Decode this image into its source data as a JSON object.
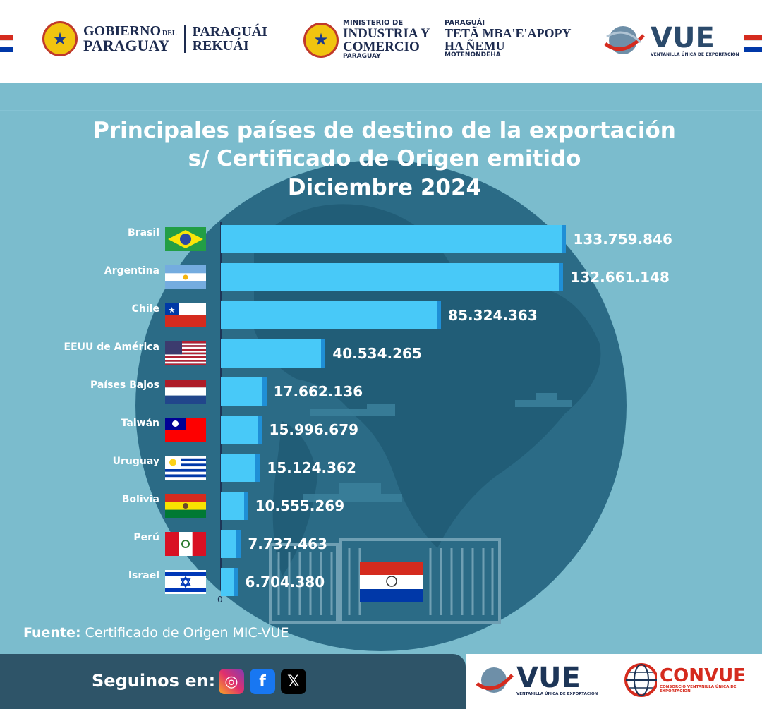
{
  "header": {
    "gobierno": {
      "line1": "GOBIERNO",
      "del": "DEL",
      "line2": "PARAGUAY"
    },
    "rekuai": {
      "line1": "PARAGUÁI",
      "line2": "REKUÁI"
    },
    "ministerio": {
      "small_top": "MINISTERIO DE",
      "line1": "INDUSTRIA Y",
      "line2": "COMERCIO",
      "small_bottom": "PARAGUAY"
    },
    "guarani": {
      "small_top": "PARAGUÁI",
      "line1": "TETÃ MBA'E'APOPY",
      "line2": "HA ÑEMU",
      "small_bottom": "MOTENONDEHA"
    },
    "vue": {
      "name": "VUE",
      "subtitle": "VENTANILLA ÚNICA DE EXPORTACIÓN"
    }
  },
  "chart_data": {
    "type": "bar",
    "orientation": "horizontal",
    "title": "Principales países de destino de la exportación s/ Certificado de Origen emitido Diciembre 2024",
    "title_lines": [
      "Principales países de destino de la exportación",
      "s/ Certificado de Origen emitido",
      "Diciembre 2024"
    ],
    "categories": [
      "Brasil",
      "Argentina",
      "Chile",
      "EEUU de América",
      "Países Bajos",
      "Taiwán",
      "Uruguay",
      "Bolivia",
      "Perú",
      "Israel"
    ],
    "values": [
      133759846,
      132661148,
      85324363,
      40534265,
      17662136,
      15996679,
      15124362,
      10555269,
      7737463,
      6704380
    ],
    "labels": [
      "133.759.846",
      "132.661.148",
      "85.324.363",
      "40.534.265",
      "17.662.136",
      "15.996.679",
      "15.124.362",
      "10.555.269",
      "7.737.463",
      "6.704.380"
    ],
    "x_tick_label": "0",
    "xlim": [
      0,
      135000000
    ],
    "grid": false,
    "bar_color": "#48c9f8"
  },
  "source": {
    "label": "Fuente:",
    "text": "Certificado de Origen MIC-VUE"
  },
  "footer": {
    "follow_label": "Seguinos en:",
    "social": [
      "instagram-icon",
      "facebook-icon",
      "x-icon"
    ],
    "vue": {
      "name": "VUE",
      "subtitle": "VENTANILLA ÚNICA DE EXPORTACIÓN"
    },
    "convue": {
      "name": "CONVUE",
      "subtitle": "CONSORCIO VENTANILLA ÚNICA DE EXPORTACIÓN"
    }
  },
  "colors": {
    "background": "#7bbccd",
    "globe": "#2b6b86",
    "land": "#1f5a73",
    "bar": "#48c9f8",
    "footer": "#2e5468",
    "brand_red": "#d52b1e",
    "brand_blue": "#0038a8",
    "vue_navy": "#1d3557"
  }
}
